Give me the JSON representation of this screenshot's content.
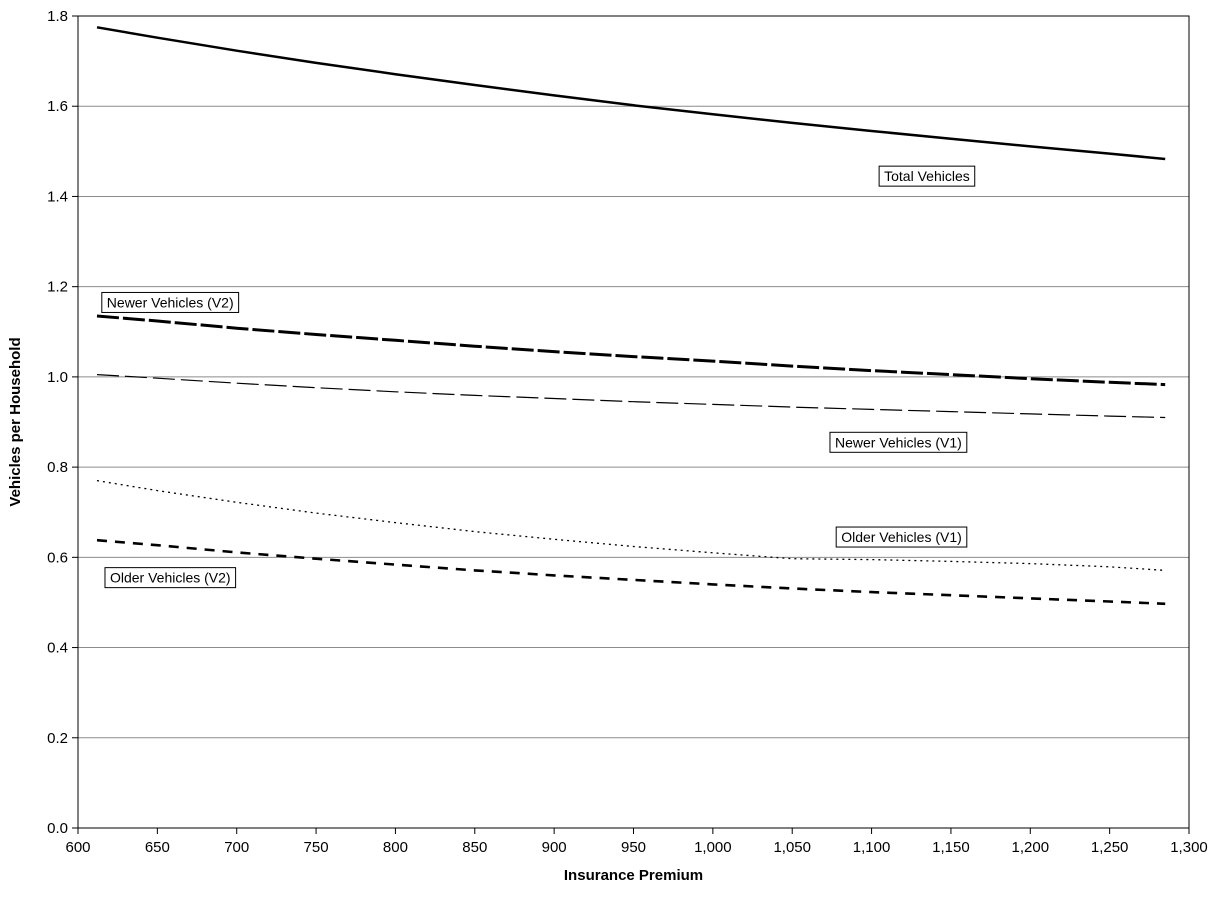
{
  "chart_data": {
    "type": "line",
    "title": "",
    "xlabel": "Insurance Premium",
    "ylabel": "Vehicles per Household",
    "xlim": [
      600,
      1300
    ],
    "ylim": [
      0.0,
      1.8
    ],
    "x_ticks": [
      600,
      650,
      700,
      750,
      800,
      850,
      900,
      950,
      1000,
      1050,
      1100,
      1150,
      1200,
      1250,
      1300
    ],
    "x_tick_labels": [
      "600",
      "650",
      "700",
      "750",
      "800",
      "850",
      "900",
      "950",
      "1,000",
      "1,050",
      "1,100",
      "1,150",
      "1,200",
      "1,250",
      "1,300"
    ],
    "y_ticks": [
      0.0,
      0.2,
      0.4,
      0.6,
      0.8,
      1.0,
      1.2,
      1.4,
      1.6,
      1.8
    ],
    "y_tick_labels": [
      "0.0",
      "0.2",
      "0.4",
      "0.6",
      "0.8",
      "1.0",
      "1.2",
      "1.4",
      "1.6",
      "1.8"
    ],
    "grid": "horizontal",
    "x": [
      612,
      650,
      700,
      750,
      800,
      850,
      900,
      950,
      1000,
      1050,
      1100,
      1150,
      1200,
      1250,
      1285
    ],
    "series": [
      {
        "name": "Total Vehicles",
        "style": "solid-thick",
        "values": [
          1.775,
          1.752,
          1.723,
          1.696,
          1.671,
          1.647,
          1.624,
          1.602,
          1.582,
          1.563,
          1.545,
          1.528,
          1.511,
          1.495,
          1.483
        ],
        "label_anchor": {
          "x": 1165,
          "y": 1.445
        }
      },
      {
        "name": "Newer Vehicles (V2)",
        "style": "long-dash-thick",
        "values": [
          1.135,
          1.124,
          1.108,
          1.094,
          1.081,
          1.068,
          1.056,
          1.045,
          1.035,
          1.024,
          1.014,
          1.005,
          0.996,
          0.988,
          0.983
        ],
        "label_anchor": {
          "x": 615,
          "y": 1.165
        }
      },
      {
        "name": "Newer Vehicles (V1)",
        "style": "long-dash-thin",
        "values": [
          1.005,
          0.997,
          0.986,
          0.976,
          0.967,
          0.959,
          0.952,
          0.945,
          0.939,
          0.933,
          0.928,
          0.923,
          0.918,
          0.913,
          0.91
        ],
        "label_anchor": {
          "x": 1160,
          "y": 0.855
        }
      },
      {
        "name": "Older Vehicles (V1)",
        "style": "dotted",
        "values": [
          0.77,
          0.748,
          0.722,
          0.698,
          0.677,
          0.657,
          0.64,
          0.624,
          0.61,
          0.597,
          0.595,
          0.591,
          0.586,
          0.579,
          0.571
        ],
        "label_anchor": {
          "x": 1160,
          "y": 0.645
        }
      },
      {
        "name": "Older Vehicles (V2)",
        "style": "short-dash-thick",
        "values": [
          0.638,
          0.627,
          0.611,
          0.597,
          0.584,
          0.571,
          0.56,
          0.55,
          0.54,
          0.531,
          0.523,
          0.516,
          0.509,
          0.502,
          0.497
        ],
        "label_anchor": {
          "x": 617,
          "y": 0.555
        }
      }
    ]
  }
}
